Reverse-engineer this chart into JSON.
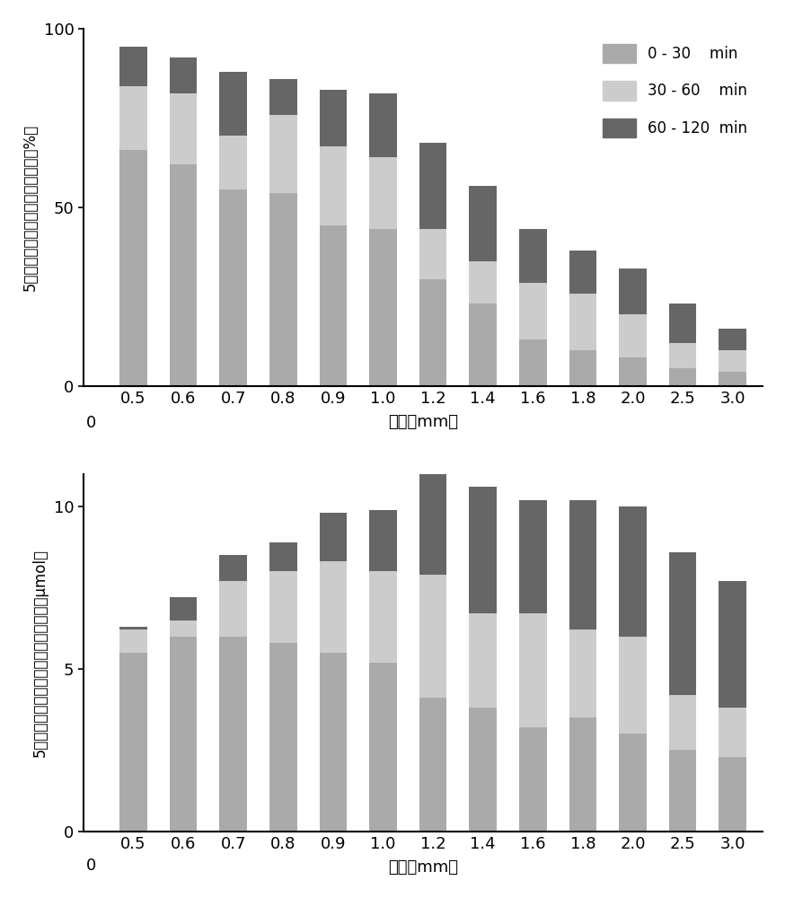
{
  "categories": [
    "0.5",
    "0.6",
    "0.7",
    "0.8",
    "0.9",
    "1.0",
    "1.2",
    "1.4",
    "1.6",
    "1.8",
    "2.0",
    "2.5",
    "3.0"
  ],
  "chart1_seg1": [
    66,
    62,
    55,
    54,
    45,
    44,
    30,
    23,
    13,
    10,
    8,
    5,
    4
  ],
  "chart1_seg2": [
    18,
    20,
    15,
    22,
    22,
    20,
    14,
    12,
    16,
    16,
    12,
    7,
    6
  ],
  "chart1_seg3": [
    11,
    10,
    18,
    10,
    16,
    18,
    24,
    21,
    15,
    12,
    13,
    11,
    6
  ],
  "chart2_seg1": [
    5.5,
    6.0,
    6.0,
    5.8,
    5.5,
    5.2,
    4.1,
    3.8,
    3.2,
    3.5,
    3.0,
    2.5,
    2.3
  ],
  "chart2_seg2": [
    0.7,
    0.5,
    1.7,
    2.2,
    2.8,
    2.8,
    3.8,
    2.9,
    3.5,
    2.7,
    3.0,
    1.7,
    1.5
  ],
  "chart2_seg3": [
    0.1,
    0.7,
    0.8,
    0.9,
    1.5,
    1.9,
    3.2,
    3.9,
    3.5,
    4.0,
    4.0,
    4.4,
    3.9
  ],
  "color_seg1": "#aaaaaa",
  "color_seg2": "#cccccc",
  "color_seg3": "#666666",
  "legend_labels": [
    "0 - 30    min",
    "30 - 60    min",
    "60 - 120  min"
  ],
  "ylabel1": "5－氨基锐戊酸扩散至组织内比例（%）",
  "ylabel2": "5－氨基锐戊酸扩散至组织内物质的量（μmol）",
  "xlabel": "厚度（mm）",
  "ylim1": [
    0,
    100
  ],
  "ylim2": [
    0,
    11
  ],
  "yticks1": [
    0,
    50,
    100
  ],
  "yticks2": [
    0,
    5,
    10
  ],
  "bar_width": 0.55
}
